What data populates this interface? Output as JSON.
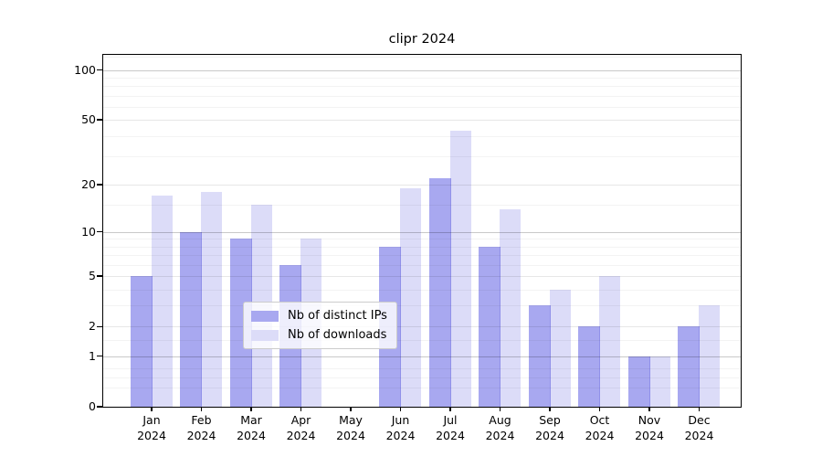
{
  "chart_data": {
    "type": "bar",
    "title": "clipr 2024",
    "categories": [
      "Jan",
      "Feb",
      "Mar",
      "Apr",
      "May",
      "Jun",
      "Jul",
      "Aug",
      "Sep",
      "Oct",
      "Nov",
      "Dec"
    ],
    "x_year_label": "2024",
    "series": [
      {
        "name": "Nb of distinct IPs",
        "color": "#a8a8f0",
        "values": [
          5,
          10,
          9,
          6,
          0,
          8,
          22,
          8,
          3,
          2,
          1,
          2
        ]
      },
      {
        "name": "Nb of downloads",
        "color": "#dcdcf8",
        "values": [
          17,
          18,
          15,
          9,
          0,
          19,
          43,
          14,
          4,
          5,
          1,
          3
        ]
      }
    ],
    "yscale": "log1p",
    "ylim": [
      0,
      124
    ],
    "yticks": [
      0,
      1,
      2,
      5,
      10,
      20,
      50,
      100
    ],
    "grid": {
      "major": [
        1,
        10,
        100
      ],
      "mid": [
        2,
        5,
        20,
        50
      ],
      "minor": [
        0.3,
        0.5,
        0.7,
        1.5,
        3,
        4,
        6,
        7,
        8,
        9,
        15,
        30,
        40,
        60,
        70,
        80,
        90,
        120
      ]
    },
    "legend": {
      "position": "lower center",
      "labels": [
        "Nb of distinct IPs",
        "Nb of downloads"
      ]
    }
  }
}
